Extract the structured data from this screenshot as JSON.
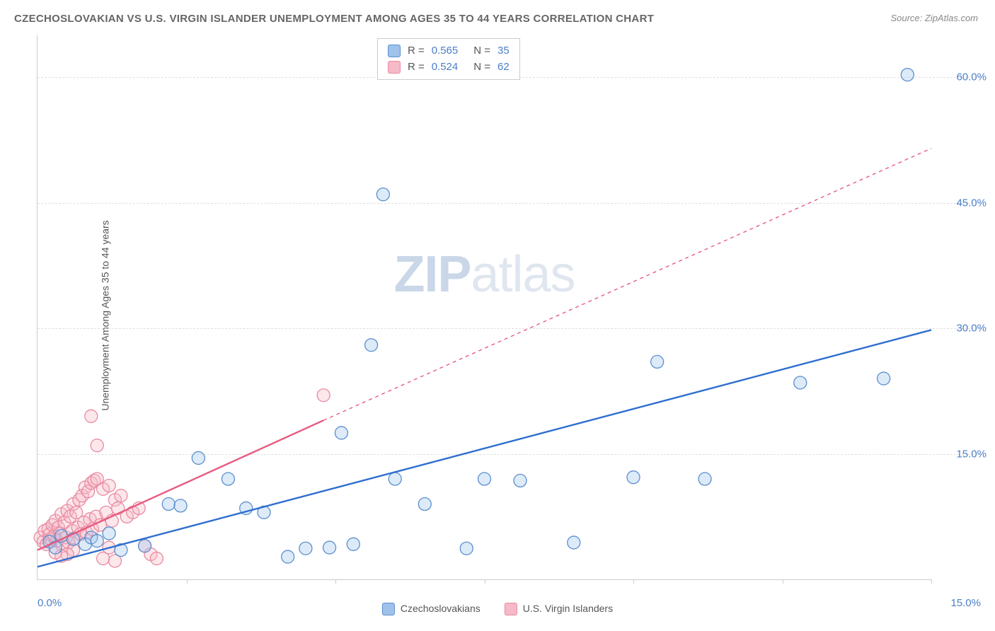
{
  "title": "CZECHOSLOVAKIAN VS U.S. VIRGIN ISLANDER UNEMPLOYMENT AMONG AGES 35 TO 44 YEARS CORRELATION CHART",
  "source_label": "Source: ZipAtlas.com",
  "y_axis_label": "Unemployment Among Ages 35 to 44 years",
  "watermark_zip": "ZIP",
  "watermark_atlas": "atlas",
  "chart": {
    "type": "scatter",
    "xlim": [
      0,
      15
    ],
    "ylim": [
      0,
      65
    ],
    "y_ticks": [
      15,
      30,
      45,
      60
    ],
    "y_tick_labels": [
      "15.0%",
      "30.0%",
      "45.0%",
      "60.0%"
    ],
    "x_ticks": [
      2.5,
      5,
      7.5,
      10,
      12.5,
      15
    ],
    "x_tick_labels_shown": {
      "left": "0.0%",
      "right": "15.0%"
    },
    "background_color": "#ffffff",
    "grid_color": "#e0e0e0",
    "axis_color": "#cccccc",
    "tick_label_color": "#4a7fc9",
    "marker_radius": 9,
    "marker_fill_opacity": 0.35,
    "marker_stroke_width": 1.3,
    "line_width_solid": 2.4,
    "line_width_dashed": 1.4,
    "series": [
      {
        "name": "Czechoslovakians",
        "key": "czech",
        "color_fill": "#9fc2eb",
        "color_stroke": "#5a8fce",
        "line_color": "#2f6fd0",
        "r_value": "0.565",
        "n_value": "35",
        "points": [
          [
            0.2,
            4.5
          ],
          [
            0.3,
            3.8
          ],
          [
            0.4,
            5.2
          ],
          [
            0.6,
            4.8
          ],
          [
            0.8,
            4.2
          ],
          [
            0.9,
            5.0
          ],
          [
            1.0,
            4.6
          ],
          [
            1.2,
            5.5
          ],
          [
            1.4,
            3.5
          ],
          [
            1.8,
            4.0
          ],
          [
            2.2,
            9.0
          ],
          [
            2.4,
            8.8
          ],
          [
            2.7,
            14.5
          ],
          [
            3.2,
            12.0
          ],
          [
            3.5,
            8.5
          ],
          [
            3.8,
            8.0
          ],
          [
            4.2,
            2.7
          ],
          [
            4.5,
            3.7
          ],
          [
            4.9,
            3.8
          ],
          [
            5.1,
            17.5
          ],
          [
            5.3,
            4.2
          ],
          [
            5.6,
            28.0
          ],
          [
            5.8,
            46.0
          ],
          [
            6.0,
            12.0
          ],
          [
            6.5,
            9.0
          ],
          [
            7.2,
            3.7
          ],
          [
            7.5,
            12.0
          ],
          [
            8.1,
            11.8
          ],
          [
            9.0,
            4.4
          ],
          [
            10.0,
            12.2
          ],
          [
            10.4,
            26.0
          ],
          [
            11.2,
            12.0
          ],
          [
            12.8,
            23.5
          ],
          [
            14.2,
            24.0
          ],
          [
            14.6,
            60.3
          ]
        ],
        "trend": {
          "x1": 0,
          "y1": 1.5,
          "x2": 15,
          "y2": 29.8,
          "dash_from_x": null
        }
      },
      {
        "name": "U.S. Virgin Islanders",
        "key": "usvi",
        "color_fill": "#f5b9c7",
        "color_stroke": "#e88aa2",
        "line_color": "#e85a7f",
        "r_value": "0.524",
        "n_value": "62",
        "points": [
          [
            0.05,
            5.0
          ],
          [
            0.1,
            4.5
          ],
          [
            0.12,
            5.8
          ],
          [
            0.15,
            4.2
          ],
          [
            0.18,
            6.0
          ],
          [
            0.2,
            5.4
          ],
          [
            0.22,
            4.8
          ],
          [
            0.25,
            6.5
          ],
          [
            0.28,
            5.2
          ],
          [
            0.3,
            7.0
          ],
          [
            0.32,
            4.6
          ],
          [
            0.35,
            6.2
          ],
          [
            0.38,
            5.5
          ],
          [
            0.4,
            7.8
          ],
          [
            0.42,
            4.0
          ],
          [
            0.45,
            6.8
          ],
          [
            0.48,
            5.0
          ],
          [
            0.5,
            8.2
          ],
          [
            0.52,
            4.4
          ],
          [
            0.55,
            7.5
          ],
          [
            0.58,
            5.8
          ],
          [
            0.6,
            9.0
          ],
          [
            0.62,
            4.9
          ],
          [
            0.65,
            8.0
          ],
          [
            0.68,
            6.2
          ],
          [
            0.7,
            9.5
          ],
          [
            0.72,
            5.4
          ],
          [
            0.75,
            10.0
          ],
          [
            0.78,
            6.8
          ],
          [
            0.8,
            11.0
          ],
          [
            0.82,
            5.6
          ],
          [
            0.85,
            10.5
          ],
          [
            0.88,
            7.2
          ],
          [
            0.9,
            11.5
          ],
          [
            0.92,
            6.0
          ],
          [
            0.95,
            11.8
          ],
          [
            0.98,
            7.5
          ],
          [
            1.0,
            12.0
          ],
          [
            1.05,
            6.5
          ],
          [
            1.1,
            10.8
          ],
          [
            1.15,
            8.0
          ],
          [
            1.2,
            11.2
          ],
          [
            1.25,
            7.0
          ],
          [
            1.3,
            9.5
          ],
          [
            1.35,
            8.5
          ],
          [
            1.4,
            10.0
          ],
          [
            1.0,
            16.0
          ],
          [
            0.9,
            19.5
          ],
          [
            1.1,
            2.5
          ],
          [
            1.3,
            2.2
          ],
          [
            1.5,
            7.5
          ],
          [
            1.6,
            8.0
          ],
          [
            1.7,
            8.5
          ],
          [
            1.8,
            4.0
          ],
          [
            1.9,
            3.0
          ],
          [
            2.0,
            2.5
          ],
          [
            1.2,
            3.8
          ],
          [
            0.6,
            3.5
          ],
          [
            0.5,
            3.0
          ],
          [
            0.4,
            2.8
          ],
          [
            4.8,
            22.0
          ],
          [
            0.3,
            3.2
          ]
        ],
        "trend": {
          "x1": 0,
          "y1": 3.5,
          "x2": 4.8,
          "y2": 19.0,
          "dashed_ext_x2": 15,
          "dashed_ext_y2": 51.5
        }
      }
    ]
  },
  "stats_box": {
    "rows": [
      {
        "series_key": "czech",
        "r_label": "R =",
        "r_value": "0.565",
        "n_label": "N =",
        "n_value": "35"
      },
      {
        "series_key": "usvi",
        "r_label": "R =",
        "r_value": "0.524",
        "n_label": "N =",
        "n_value": "62"
      }
    ]
  },
  "legend_bottom": [
    {
      "series_key": "czech",
      "label": "Czechoslovakians"
    },
    {
      "series_key": "usvi",
      "label": "U.S. Virgin Islanders"
    }
  ]
}
